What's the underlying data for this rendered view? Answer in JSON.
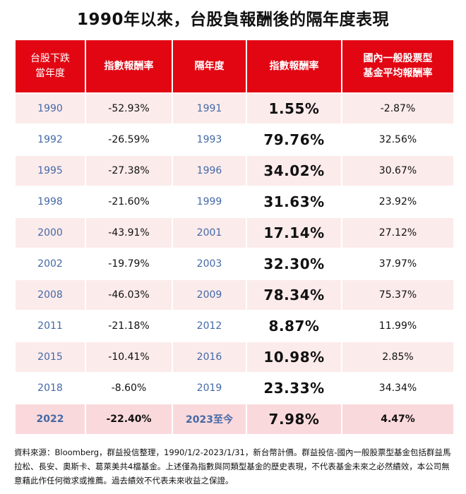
{
  "title": "1990年以來，台股負報酬後的隔年度表現",
  "table": {
    "headers": [
      "台股下跌\n當年度",
      "指數報酬率",
      "隔年度",
      "指數報酬率",
      "國內一般股票型\n基金平均報酬率"
    ],
    "rows": [
      {
        "down_year": "1990",
        "down_return": "-52.93%",
        "next_year": "1991",
        "next_return": "1.55%",
        "fund_return": "-2.87%"
      },
      {
        "down_year": "1992",
        "down_return": "-26.59%",
        "next_year": "1993",
        "next_return": "79.76%",
        "fund_return": "32.56%"
      },
      {
        "down_year": "1995",
        "down_return": "-27.38%",
        "next_year": "1996",
        "next_return": "34.02%",
        "fund_return": "30.67%"
      },
      {
        "down_year": "1998",
        "down_return": "-21.60%",
        "next_year": "1999",
        "next_return": "31.63%",
        "fund_return": "23.92%"
      },
      {
        "down_year": "2000",
        "down_return": "-43.91%",
        "next_year": "2001",
        "next_return": "17.14%",
        "fund_return": "27.12%"
      },
      {
        "down_year": "2002",
        "down_return": "-19.79%",
        "next_year": "2003",
        "next_return": "32.30%",
        "fund_return": "37.97%"
      },
      {
        "down_year": "2008",
        "down_return": "-46.03%",
        "next_year": "2009",
        "next_return": "78.34%",
        "fund_return": "75.37%"
      },
      {
        "down_year": "2011",
        "down_return": "-21.18%",
        "next_year": "2012",
        "next_return": "8.87%",
        "fund_return": "11.99%"
      },
      {
        "down_year": "2015",
        "down_return": "-10.41%",
        "next_year": "2016",
        "next_return": "10.98%",
        "fund_return": "2.85%"
      },
      {
        "down_year": "2018",
        "down_return": "-8.60%",
        "next_year": "2019",
        "next_return": "23.33%",
        "fund_return": "34.34%"
      },
      {
        "down_year": "2022",
        "down_return": "-22.40%",
        "next_year": "2023至今",
        "next_return": "7.98%",
        "fund_return": "4.47%"
      }
    ]
  },
  "footnote": "資料來源：Bloomberg，群益投信整理，1990/1/2-2023/1/31，新台幣計價。群益投信-國內一般股票型基金包括群益馬拉松、長安、奧斯卡、葛萊美共4檔基金。上述僅為指數與同類型基金的歷史表現，不代表基金未來之必然績效，本公司無意藉此作任何徵求或推薦。過去績效不代表未來收益之保證。",
  "colors": {
    "header_bg": "#e20613",
    "year_text": "#4469a7",
    "row_tint": "#fcebeb",
    "highlight_row": "#fad9dc"
  }
}
